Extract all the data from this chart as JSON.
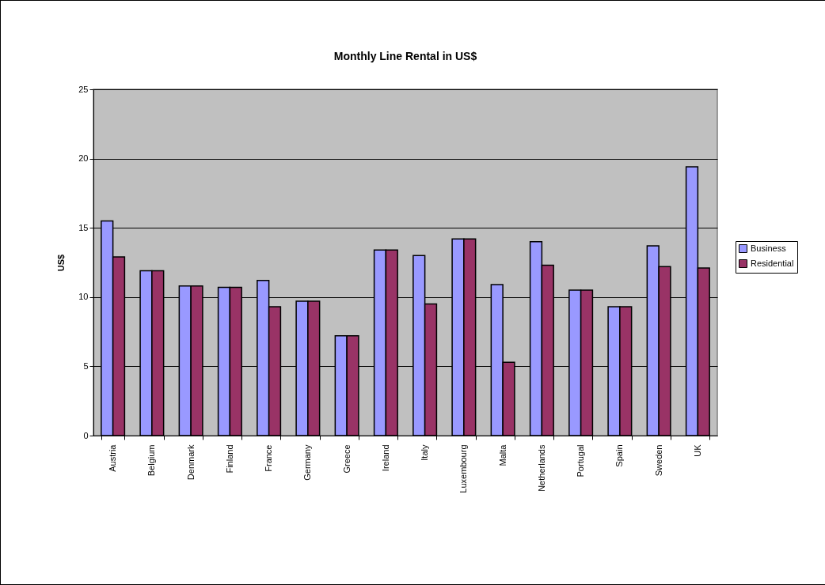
{
  "chart_data": {
    "type": "bar",
    "title": "Monthly Line Rental in US$",
    "ylabel": "US$",
    "categories": [
      "Austria",
      "Belgium",
      "Denmark",
      "Finland",
      "France",
      "Germany",
      "Greece",
      "Ireland",
      "Italy",
      "Luxembourg",
      "Malta",
      "Netherlands",
      "Portugal",
      "Spain",
      "Sweden",
      "UK"
    ],
    "series": [
      {
        "name": "Business",
        "color": "#9999ff",
        "values": [
          15.5,
          11.9,
          10.8,
          10.7,
          11.2,
          9.7,
          7.2,
          13.4,
          13.0,
          14.2,
          10.9,
          14.0,
          10.5,
          9.3,
          13.7,
          19.4
        ]
      },
      {
        "name": "Residential",
        "color": "#993366",
        "values": [
          12.9,
          11.9,
          10.8,
          10.7,
          9.3,
          9.7,
          7.2,
          13.4,
          9.5,
          14.2,
          5.3,
          12.3,
          10.5,
          9.3,
          12.2,
          12.1
        ]
      }
    ],
    "ylim": [
      0,
      25
    ],
    "yticks": [
      0,
      5,
      10,
      15,
      20,
      25
    ],
    "grid": "y",
    "legend": "right"
  }
}
